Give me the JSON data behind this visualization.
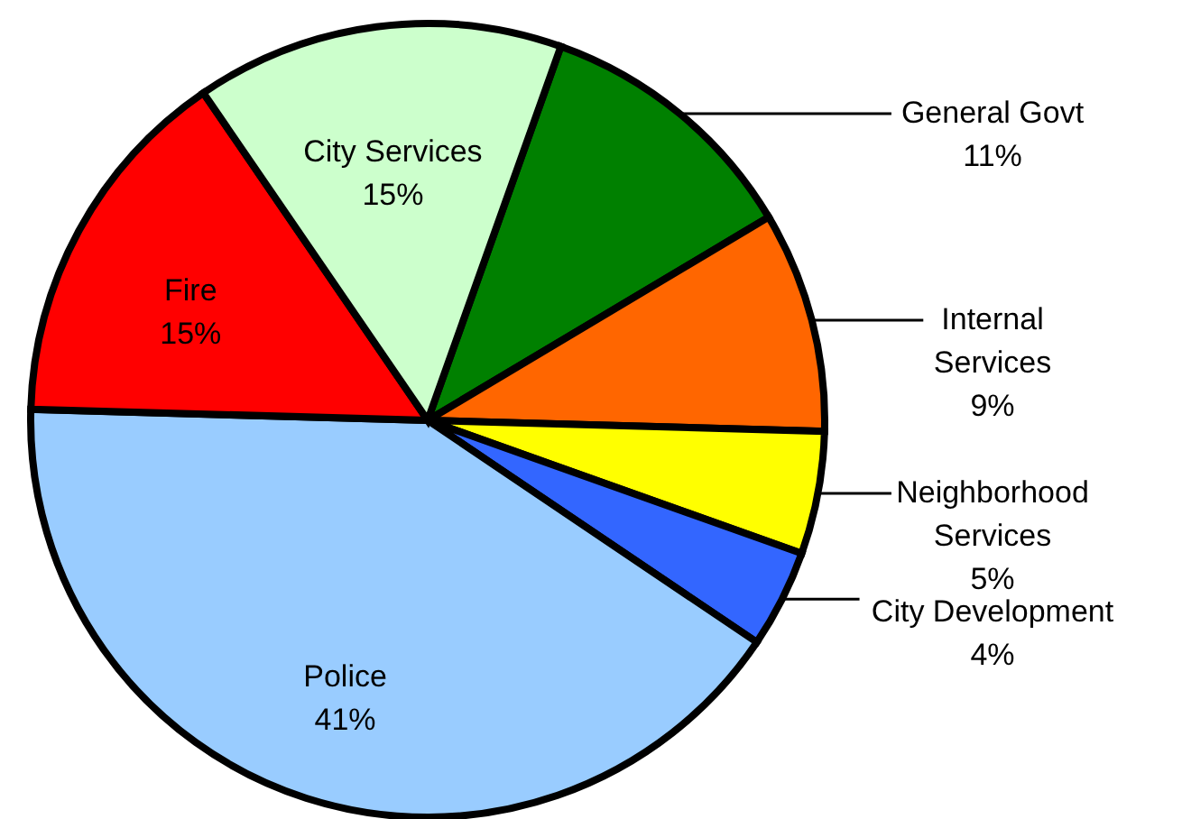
{
  "chart_data": {
    "type": "pie",
    "categories": [
      "General Govt",
      "Internal Services",
      "Neighborhood Services",
      "City Development",
      "Police",
      "Fire",
      "City Services"
    ],
    "values": [
      11,
      9,
      5,
      4,
      41,
      15,
      15
    ],
    "value_labels": [
      "11%",
      "9%",
      "5%",
      "4%",
      "41%",
      "15%",
      "15%"
    ],
    "colors": [
      "#008000",
      "#ff6600",
      "#ffff00",
      "#3366ff",
      "#99ccff",
      "#ff0000",
      "#ccffcc"
    ]
  }
}
